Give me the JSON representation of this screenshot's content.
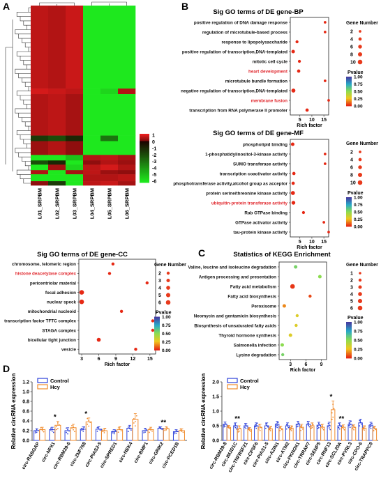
{
  "panels": {
    "A": {
      "letter": "A"
    },
    "B": {
      "letter": "B"
    },
    "C": {
      "letter": "C"
    },
    "D": {
      "letter": "D"
    }
  },
  "colors": {
    "red": "#e8251f",
    "dark": "#1a0000",
    "green": "#1ee81e",
    "highlight": "#e0262c",
    "control": "#2b3fd9",
    "hcy": "#f08a2a",
    "dot": "#e83a1c"
  },
  "chart_data": [
    {
      "id": "heatmap",
      "type": "heatmap",
      "columns": [
        "L01_SRPBM",
        "L02_SRPBM",
        "L03_SRPBM",
        "L04_SRPBM",
        "L05_SRPBM",
        "L06_SRPBM"
      ],
      "colorbar_ticks": [
        "1",
        "0",
        "-1",
        "-2",
        "-3",
        "-4",
        "-5",
        "-6"
      ],
      "colorbar_range": [
        -6,
        1
      ],
      "row_blocks": [
        {
          "rows": 60,
          "values": [
            0.6,
            0.5,
            0.7,
            -6,
            -6,
            -6
          ]
        },
        {
          "rows": 4,
          "values": [
            0.8,
            0.7,
            0.6,
            -6,
            -5.5,
            0.5
          ]
        },
        {
          "rows": 30,
          "values": [
            0.5,
            0.6,
            0.4,
            -6,
            -6,
            -6
          ]
        },
        {
          "rows": 4,
          "values": [
            -1.5,
            -2,
            -1,
            -6,
            -3,
            -6
          ]
        },
        {
          "rows": 10,
          "values": [
            0.3,
            0.5,
            0.2,
            -6,
            -6,
            -6
          ]
        },
        {
          "rows": 4,
          "values": [
            -6,
            -6,
            -5,
            0.5,
            0.6,
            0.4
          ]
        },
        {
          "rows": 3,
          "values": [
            -2,
            -1,
            -6,
            0.2,
            0.5,
            0.3
          ]
        },
        {
          "rows": 4,
          "values": [
            -6,
            0.4,
            -5.5,
            0.6,
            0.8,
            0.5
          ]
        },
        {
          "rows": 3,
          "values": [
            0.5,
            -6,
            0.4,
            0.6,
            0.3,
            0.2
          ]
        },
        {
          "rows": 5,
          "values": [
            -6,
            -6,
            -6,
            0.5,
            0.5,
            0.6
          ]
        },
        {
          "rows": 3,
          "values": [
            0.2,
            -1.5,
            -6,
            0.6,
            0.7,
            0.4
          ]
        }
      ]
    },
    {
      "id": "bp",
      "type": "scatter",
      "title": "Sig GO terms of DE gene-BP",
      "xlabel": "Rich factor",
      "xticks": [
        5,
        10,
        15
      ],
      "xlim": [
        1,
        17
      ],
      "terms": [
        {
          "label": "positive regulation of DNA damage response",
          "rich": 15.5,
          "genes": 2,
          "pvalue": 0.0,
          "highlight": false
        },
        {
          "label": "regulation of microtubule-based process",
          "rich": 15.5,
          "genes": 2,
          "pvalue": 0.0,
          "highlight": false
        },
        {
          "label": "response to lipopolysaccharide",
          "rich": 3.8,
          "genes": 3,
          "pvalue": 0.0,
          "highlight": false
        },
        {
          "label": "positive regulation of transcription,DNA-templated",
          "rich": 2.2,
          "genes": 5,
          "pvalue": 0.0,
          "highlight": false
        },
        {
          "label": "mitotic cell cycle",
          "rich": 4.8,
          "genes": 3,
          "pvalue": 0.0,
          "highlight": false
        },
        {
          "label": "heart development",
          "rich": 4.5,
          "genes": 4,
          "pvalue": 0.0,
          "highlight": true
        },
        {
          "label": "microtubule bundle formation",
          "rich": 15.5,
          "genes": 2,
          "pvalue": 0.0,
          "highlight": false
        },
        {
          "label": "negative regulation of transcription,DNA-templated",
          "rich": 2.3,
          "genes": 7,
          "pvalue": 0.0,
          "highlight": false
        },
        {
          "label": "membrane fusion",
          "rich": 17.0,
          "genes": 2,
          "pvalue": 0.0,
          "highlight": true
        },
        {
          "label": "transcription from RNA polymerase II promoter",
          "rich": 8.0,
          "genes": 4,
          "pvalue": 0.0,
          "highlight": false
        }
      ],
      "legend": {
        "size_title": "Gene Number",
        "sizes": [
          2,
          4,
          6,
          8,
          10
        ],
        "color_title": "Pvalue",
        "color_ticks": [
          "1.00",
          "0.75",
          "0.50",
          "0.25",
          "0.00"
        ]
      }
    },
    {
      "id": "mf",
      "type": "scatter",
      "title": "Sig GO terms of DE gene-MF",
      "xlabel": "Rich factor",
      "xticks": [
        5,
        10,
        15
      ],
      "xlim": [
        1,
        17
      ],
      "terms": [
        {
          "label": "phospholipid binding",
          "rich": 2.0,
          "genes": 5,
          "pvalue": 0.0,
          "highlight": false
        },
        {
          "label": "1-phosphatidylinositol-3-kinase activity",
          "rich": 15.5,
          "genes": 2,
          "pvalue": 0.0,
          "highlight": false
        },
        {
          "label": "SUMO transferase activity",
          "rich": 15.5,
          "genes": 2,
          "pvalue": 0.0,
          "highlight": false
        },
        {
          "label": "transcription coactivator activity",
          "rich": 2.5,
          "genes": 4,
          "pvalue": 0.0,
          "highlight": false
        },
        {
          "label": "phosphotransferase activity,alcohol group as acceptor",
          "rich": 2.2,
          "genes": 4,
          "pvalue": 0.0,
          "highlight": false
        },
        {
          "label": "protein serine/threonine kinase activity",
          "rich": 2.1,
          "genes": 7,
          "pvalue": 0.0,
          "highlight": false
        },
        {
          "label": "ubiquitin-protein transferase activity",
          "rich": 2.3,
          "genes": 6,
          "pvalue": 0.0,
          "highlight": true
        },
        {
          "label": "Rab GTPase binding",
          "rich": 6.5,
          "genes": 3,
          "pvalue": 0.0,
          "highlight": false
        },
        {
          "label": "GTPase activator activity",
          "rich": 15.0,
          "genes": 2,
          "pvalue": 0.0,
          "highlight": false
        },
        {
          "label": "tau-protein kinase activity",
          "rich": 17.0,
          "genes": 2,
          "pvalue": 0.0,
          "highlight": false
        }
      ],
      "legend": {
        "size_title": "Gene Number",
        "sizes": [
          2,
          4,
          6,
          8,
          10
        ],
        "color_title": "Pvalue",
        "color_ticks": [
          "1.00",
          "0.75",
          "0.50",
          "0.25",
          "0.00"
        ]
      }
    },
    {
      "id": "cc",
      "type": "scatter",
      "title": "Sig GO terms of DE gene-CC",
      "xlabel": "Rich factor",
      "xticks": [
        3,
        6,
        9,
        12,
        15
      ],
      "xlim": [
        2.5,
        16
      ],
      "terms": [
        {
          "label": "chromosome, telomeric region",
          "rich": 8.5,
          "genes": 2,
          "pvalue": 0.0,
          "highlight": false
        },
        {
          "label": "histone deacetylase complex",
          "rich": 7.9,
          "genes": 2,
          "pvalue": 0.0,
          "highlight": true
        },
        {
          "label": "pericentriolar material",
          "rich": 14.5,
          "genes": 2,
          "pvalue": 0.0,
          "highlight": false
        },
        {
          "label": "focal adhesion",
          "rich": 3.0,
          "genes": 6,
          "pvalue": 0.0,
          "highlight": false
        },
        {
          "label": "nuclear speck",
          "rich": 3.0,
          "genes": 6,
          "pvalue": 0.0,
          "highlight": false
        },
        {
          "label": "mitochondrial nucleoid",
          "rich": 10.0,
          "genes": 2,
          "pvalue": 0.0,
          "highlight": false
        },
        {
          "label": "transcription factor TFTC complex",
          "rich": 15.5,
          "genes": 2,
          "pvalue": 0.0,
          "highlight": false
        },
        {
          "label": "STAGA complex",
          "rich": 15.5,
          "genes": 2,
          "pvalue": 0.0,
          "highlight": false
        },
        {
          "label": "bicellular tight junction",
          "rich": 6.0,
          "genes": 4,
          "pvalue": 0.0,
          "highlight": false
        },
        {
          "label": "vesicle",
          "rich": 12.5,
          "genes": 2,
          "pvalue": 0.0,
          "highlight": false
        }
      ],
      "legend": {
        "size_title": "Gene Number",
        "sizes": [
          2,
          3,
          4,
          5,
          6
        ],
        "color_title": "Pvalue",
        "color_ticks": [
          "1.00",
          "0.75",
          "0.50",
          "0.25",
          "0.00"
        ]
      }
    },
    {
      "id": "kegg",
      "type": "scatter",
      "title": "Statistics of KEGG Enrichment",
      "xlabel": "Rich factor",
      "xticks": [
        3,
        6,
        9
      ],
      "xlim": [
        0.8,
        10
      ],
      "terms": [
        {
          "label": "Valine, leucine and isoleucine degradation",
          "rich": 4.0,
          "genes": 3,
          "pvalue": 0.55,
          "highlight": false
        },
        {
          "label": "Antigen processing and presentation",
          "rich": 8.7,
          "genes": 3,
          "pvalue": 0.5,
          "highlight": false
        },
        {
          "label": "Fatty acid metabolism",
          "rich": 3.4,
          "genes": 6,
          "pvalue": 0.02,
          "highlight": false
        },
        {
          "label": "Fatty acid biosynthesis",
          "rich": 6.8,
          "genes": 2,
          "pvalue": 0.05,
          "highlight": false
        },
        {
          "label": "Peroxisome",
          "rich": 1.8,
          "genes": 3,
          "pvalue": 0.15,
          "highlight": false
        },
        {
          "label": "Neomycin and gentamicin biosynthesis",
          "rich": 4.3,
          "genes": 2,
          "pvalue": 0.3,
          "highlight": false
        },
        {
          "label": "Biosynthesis of unsaturated fatty acids",
          "rich": 4.1,
          "genes": 2,
          "pvalue": 0.3,
          "highlight": false
        },
        {
          "label": "Thyroid hormone synthesis",
          "rich": 3.0,
          "genes": 3,
          "pvalue": 0.3,
          "highlight": false
        },
        {
          "label": "Salmonella infection",
          "rich": 1.4,
          "genes": 3,
          "pvalue": 0.5,
          "highlight": false
        },
        {
          "label": "Lysine degradation",
          "rich": 1.5,
          "genes": 2,
          "pvalue": 0.55,
          "highlight": false
        }
      ],
      "legend": {
        "size_title": "Gene Number",
        "sizes": [
          1,
          2,
          3,
          4,
          5,
          6
        ],
        "color_title": "Pvalue",
        "color_ticks": [
          "1.00",
          "0.75",
          "0.50",
          "0.25",
          "0.00"
        ]
      }
    },
    {
      "id": "bar-left",
      "type": "bar",
      "ylabel": "Relative circRNA expression",
      "yticks": [
        "0.0",
        "0.2",
        "0.4",
        "0.6",
        "0.8",
        "1.0",
        "1.2"
      ],
      "ylim": [
        0,
        1.2
      ],
      "categories": [
        "circ-RABGAP",
        "circ-NFX1",
        "circ-RBM39-6",
        "circ-ZNF768",
        "circ-PIAS2-5",
        "circ-SPRED1",
        "circ-NEK4",
        "circ-BMP1",
        "circ-GRIK2",
        "circ-PCED1B"
      ],
      "series": [
        {
          "name": "Control",
          "values": [
            0.2,
            0.22,
            0.2,
            0.23,
            0.23,
            0.18,
            0.25,
            0.2,
            0.25,
            0.18
          ]
        },
        {
          "name": "Hcy",
          "values": [
            0.22,
            0.31,
            0.26,
            0.38,
            0.2,
            0.22,
            0.43,
            0.22,
            0.24,
            0.2
          ]
        }
      ],
      "errors": [
        [
          0.04,
          0.05,
          0.06,
          0.05,
          0.05,
          0.04,
          0.06,
          0.05,
          0.03,
          0.04
        ],
        [
          0.05,
          0.08,
          0.07,
          0.08,
          0.05,
          0.06,
          0.12,
          0.05,
          0.04,
          0.04
        ]
      ],
      "significance": [
        "",
        "*",
        "",
        "*",
        "",
        "",
        "",
        "",
        "**",
        ""
      ]
    },
    {
      "id": "bar-right",
      "type": "bar",
      "ylabel": "Relative circRNA expression",
      "yticks": [
        "0.0",
        "0.5",
        "1.0",
        "1.5",
        "2.0"
      ],
      "ylim": [
        0,
        2.0
      ],
      "categories": [
        "circ-RBM39-8",
        "circ-IMJD1C",
        "circ-TNFRSF21",
        "circ-CPSF6",
        "circ-PIAS1-5",
        "circ-AZIN1",
        "circ-ATM2",
        "circ-PKNOX1",
        "circ-TRRAP7",
        "circ-SENP5",
        "circ-RNF13",
        "circ-SCL20A",
        "circ-PVRL3",
        "circ-CPO-6",
        "circ-TRAPPC9"
      ],
      "series": [
        {
          "name": "Control",
          "values": [
            0.55,
            0.5,
            0.5,
            0.5,
            0.5,
            0.55,
            0.5,
            0.55,
            0.55,
            0.52,
            0.5,
            0.5,
            0.55,
            0.6,
            0.52
          ]
        },
        {
          "name": "Hcy",
          "values": [
            0.45,
            0.4,
            0.38,
            0.45,
            0.4,
            0.4,
            0.42,
            0.45,
            0.5,
            0.45,
            1.05,
            0.45,
            0.45,
            0.42,
            0.4
          ]
        }
      ],
      "errors": [
        [
          0.08,
          0.1,
          0.08,
          0.1,
          0.1,
          0.1,
          0.1,
          0.1,
          0.1,
          0.1,
          0.12,
          0.1,
          0.12,
          0.12,
          0.1
        ],
        [
          0.06,
          0.1,
          0.06,
          0.1,
          0.08,
          0.08,
          0.08,
          0.1,
          0.1,
          0.1,
          0.3,
          0.08,
          0.08,
          0.08,
          0.08
        ]
      ],
      "significance": [
        "",
        "**",
        "",
        "",
        "",
        "",
        "",
        "",
        "",
        "",
        "*",
        "**",
        "",
        "",
        ""
      ]
    }
  ]
}
